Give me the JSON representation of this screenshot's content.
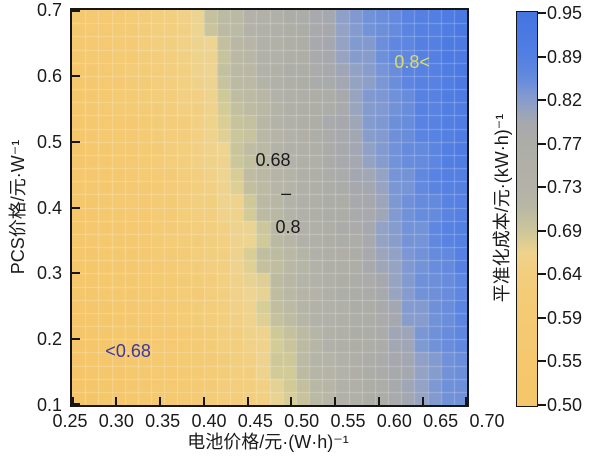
{
  "figure": {
    "background": "#ffffff",
    "text_color": "#1a1a1a",
    "axis_color": "#161616"
  },
  "chart_data": {
    "type": "heatmap",
    "title": "",
    "xlabel": "电池价格/元·(W·h)⁻¹",
    "ylabel": "PCS价格/元·W⁻¹",
    "colorbar_label": "平准化成本/元·(kW·h)⁻¹",
    "x_axis": {
      "min": 0.25,
      "max": 0.7,
      "tick_labels": [
        "0.25",
        "0.30",
        "0.35",
        "0.40",
        "0.45",
        "0.50",
        "0.55",
        "0.60",
        "0.65",
        "0.70"
      ]
    },
    "y_axis": {
      "min": 0.1,
      "max": 0.7,
      "tick_labels": [
        "0.7",
        "0.6",
        "0.5",
        "0.4",
        "0.3",
        "0.2",
        "0.1"
      ]
    },
    "colorbar": {
      "min": 0.5,
      "max": 0.95,
      "tick_labels": [
        "0.95",
        "0.89",
        "0.82",
        "0.77",
        "0.73",
        "0.69",
        "0.64",
        "0.59",
        "0.55",
        "0.50"
      ]
    },
    "grid": {
      "on": true,
      "cols": 30,
      "rows": 30,
      "line_color": "rgba(255,255,255,0.25)"
    },
    "surface": {
      "formula": "levelized_cost = 0.262 + 0.822*battery_price + 0.131*pcs_price",
      "a": 0.262,
      "b": 0.822,
      "c": 0.131,
      "noise_amp": 0.008,
      "clamp": [
        0.5,
        0.95
      ]
    },
    "region_thresholds": [
      0.68,
      0.8
    ],
    "colormap": [
      {
        "v": 0.5,
        "c": "#f5c669"
      },
      {
        "v": 0.6,
        "c": "#f4ca73"
      },
      {
        "v": 0.65,
        "c": "#f2cf80"
      },
      {
        "v": 0.675,
        "c": "#edd492"
      },
      {
        "v": 0.686,
        "c": "#d2cb97"
      },
      {
        "v": 0.7,
        "c": "#bdbba2"
      },
      {
        "v": 0.73,
        "c": "#b2b2a9"
      },
      {
        "v": 0.77,
        "c": "#adada7"
      },
      {
        "v": 0.795,
        "c": "#a6a8ae"
      },
      {
        "v": 0.812,
        "c": "#93a2c5"
      },
      {
        "v": 0.83,
        "c": "#7795d6"
      },
      {
        "v": 0.87,
        "c": "#5983e2"
      },
      {
        "v": 0.92,
        "c": "#4a79e2"
      },
      {
        "v": 0.95,
        "c": "#4475e0"
      }
    ],
    "annotations": [
      {
        "text": "0.8<",
        "color": "#d9db69",
        "fx": 0.861,
        "fy": 0.132
      },
      {
        "text": "0.68",
        "color": "#1a1a1a",
        "fx": 0.509,
        "fy": 0.38
      },
      {
        "text": "–",
        "color": "#1a1a1a",
        "fx": 0.542,
        "fy": 0.463
      },
      {
        "text": "0.8",
        "color": "#1a1a1a",
        "fx": 0.547,
        "fy": 0.549
      },
      {
        "text": "<0.68",
        "color": "#3d37a3",
        "fx": 0.142,
        "fy": 0.863
      }
    ]
  }
}
